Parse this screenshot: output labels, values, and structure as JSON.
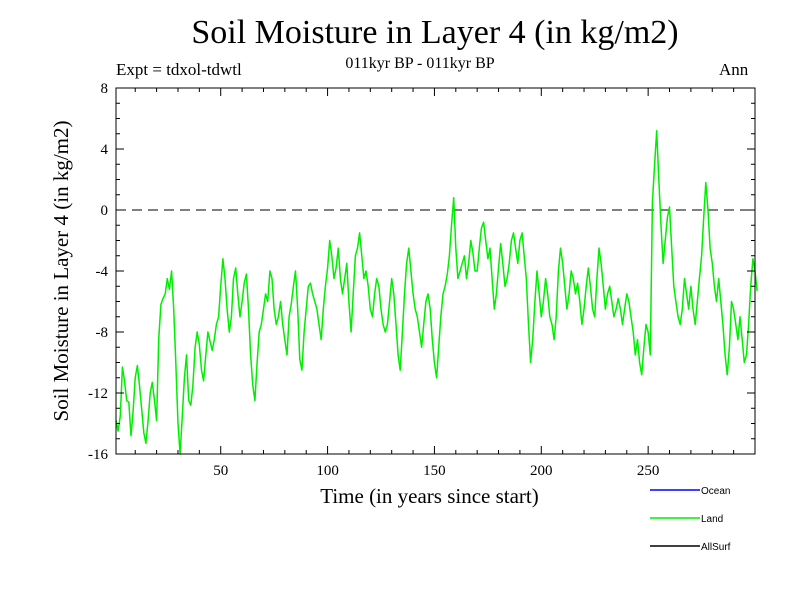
{
  "chart_data": {
    "type": "line",
    "title": "Soil Moisture in Layer 4 (in kg/m2)",
    "subtitle": "011kyr BP - 011kyr BP",
    "expt_label": "Expt = tdxol-tdwtl",
    "season": "Ann",
    "xlabel": "Time (in years since start)",
    "ylabel": "Soil Moisture in Layer 4 (in kg/m2)",
    "xlim": [
      1,
      300
    ],
    "ylim": [
      -16,
      8
    ],
    "xticks": [
      {
        "value": 50,
        "label": "50"
      },
      {
        "value": 100,
        "label": "100"
      },
      {
        "value": 150,
        "label": "150"
      },
      {
        "value": 200,
        "label": "200"
      },
      {
        "value": 250,
        "label": "250"
      }
    ],
    "yticks": [
      {
        "value": 8,
        "label": "8"
      },
      {
        "value": 4,
        "label": "4"
      },
      {
        "value": 0,
        "label": "0"
      },
      {
        "value": -4,
        "label": "-4"
      },
      {
        "value": -8,
        "label": "-8"
      },
      {
        "value": -12,
        "label": "-12"
      },
      {
        "value": -16,
        "label": "-16"
      }
    ],
    "reference_line": 0,
    "legend": [
      {
        "name": "Ocean",
        "color": "#0000ff"
      },
      {
        "name": "Land",
        "color": "#00ee00"
      },
      {
        "name": "AllSurf",
        "color": "#000000"
      }
    ],
    "series": [
      {
        "name": "Land",
        "color": "#00ee00",
        "x_start": 1,
        "x_step": 1,
        "values": [
          -13.8,
          -14.5,
          -13.5,
          -10.3,
          -11.2,
          -12.5,
          -12.6,
          -14.8,
          -13.2,
          -11.0,
          -10.2,
          -11.5,
          -13.0,
          -14.6,
          -15.3,
          -13.8,
          -12.0,
          -11.3,
          -12.5,
          -13.8,
          -8.5,
          -6.2,
          -5.8,
          -5.5,
          -4.5,
          -5.2,
          -4.0,
          -6.5,
          -10.0,
          -14.0,
          -16.0,
          -13.5,
          -11.0,
          -9.5,
          -12.5,
          -12.8,
          -11.5,
          -9.0,
          -8.0,
          -8.8,
          -10.5,
          -11.2,
          -9.5,
          -8.0,
          -8.6,
          -9.2,
          -8.5,
          -7.5,
          -7.0,
          -5.0,
          -3.2,
          -4.5,
          -6.5,
          -8.0,
          -7.0,
          -4.5,
          -3.8,
          -5.5,
          -7.0,
          -6.0,
          -4.8,
          -4.2,
          -6.5,
          -9.5,
          -11.5,
          -12.5,
          -10.0,
          -8.0,
          -7.5,
          -6.5,
          -5.5,
          -6.0,
          -4.0,
          -4.5,
          -6.5,
          -7.5,
          -7.0,
          -6.0,
          -7.5,
          -8.5,
          -9.5,
          -7.0,
          -6.2,
          -5.0,
          -4.0,
          -6.5,
          -9.8,
          -10.5,
          -8.0,
          -6.5,
          -5.0,
          -4.8,
          -5.5,
          -6.0,
          -6.5,
          -7.5,
          -8.5,
          -6.5,
          -5.0,
          -3.8,
          -2.0,
          -3.0,
          -4.5,
          -3.8,
          -2.5,
          -4.5,
          -5.5,
          -4.5,
          -3.5,
          -6.0,
          -8.0,
          -5.5,
          -3.0,
          -2.5,
          -1.5,
          -3.0,
          -4.5,
          -4.0,
          -5.0,
          -6.5,
          -7.0,
          -5.5,
          -4.5,
          -5.0,
          -6.5,
          -7.5,
          -8.0,
          -7.5,
          -6.0,
          -4.5,
          -5.5,
          -7.5,
          -9.5,
          -10.5,
          -8.0,
          -5.5,
          -3.5,
          -2.5,
          -4.0,
          -5.5,
          -6.5,
          -7.0,
          -8.0,
          -9.0,
          -7.5,
          -6.0,
          -5.5,
          -6.5,
          -8.5,
          -10.0,
          -11.0,
          -9.0,
          -7.0,
          -5.5,
          -5.0,
          -4.2,
          -3.0,
          -1.0,
          0.8,
          -2.5,
          -4.5,
          -4.0,
          -3.5,
          -3.0,
          -4.5,
          -3.5,
          -2.0,
          -2.8,
          -4.0,
          -4.0,
          -2.5,
          -1.2,
          -0.8,
          -2.0,
          -3.2,
          -2.5,
          -4.5,
          -6.5,
          -5.5,
          -3.8,
          -2.2,
          -3.5,
          -5.0,
          -4.5,
          -3.5,
          -2.0,
          -1.5,
          -2.5,
          -3.5,
          -2.0,
          -1.5,
          -3.0,
          -4.5,
          -7.5,
          -10.0,
          -8.5,
          -6.0,
          -4.0,
          -5.5,
          -7.0,
          -6.0,
          -4.5,
          -5.5,
          -7.0,
          -7.5,
          -8.5,
          -7.0,
          -4.0,
          -2.5,
          -3.5,
          -5.0,
          -6.5,
          -5.5,
          -4.0,
          -4.5,
          -5.5,
          -4.8,
          -6.0,
          -7.5,
          -6.5,
          -5.0,
          -3.8,
          -5.0,
          -6.5,
          -7.0,
          -4.5,
          -2.5,
          -3.5,
          -5.0,
          -6.5,
          -5.5,
          -5.0,
          -6.0,
          -7.0,
          -6.5,
          -5.8,
          -6.5,
          -7.5,
          -6.5,
          -5.5,
          -6.0,
          -7.0,
          -8.0,
          -9.5,
          -8.5,
          -10.0,
          -10.8,
          -9.0,
          -7.5,
          -8.0,
          -9.5,
          0.5,
          3.0,
          5.2,
          2.0,
          -1.0,
          -3.5,
          -2.0,
          -0.5,
          0.2,
          -2.5,
          -5.0,
          -6.0,
          -7.0,
          -7.5,
          -6.5,
          -4.5,
          -5.5,
          -6.5,
          -5.0,
          -6.5,
          -7.5,
          -6.0,
          -4.5,
          -3.0,
          -0.5,
          1.8,
          0.0,
          -2.5,
          -3.5,
          -5.0,
          -6.0,
          -4.5,
          -6.0,
          -7.5,
          -9.5,
          -10.8,
          -9.0,
          -6.0,
          -6.5,
          -7.5,
          -8.5,
          -7.0,
          -8.5,
          -10.0,
          -9.5,
          -7.5,
          -5.0,
          -3.2,
          -4.0,
          -5.3
        ]
      }
    ]
  }
}
